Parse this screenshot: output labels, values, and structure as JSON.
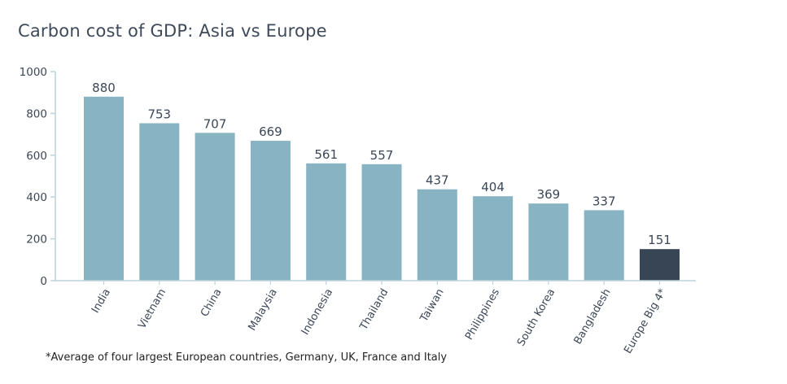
{
  "chart_data": {
    "type": "bar",
    "title": "Carbon cost of GDP: Asia vs Europe",
    "xlabel": "",
    "ylabel": "",
    "ylim": [
      0,
      1000
    ],
    "yticks": [
      0,
      200,
      400,
      600,
      800,
      1000
    ],
    "categories": [
      "India",
      "Vietnam",
      "China",
      "Malaysia",
      "Indonesia",
      "Thailand",
      "Taiwan",
      "Philippines",
      "South Korea",
      "Bangladesh",
      "Europe Big 4*"
    ],
    "values": [
      880,
      753,
      707,
      669,
      561,
      557,
      437,
      404,
      369,
      337,
      151
    ],
    "grid": false,
    "legend": "none",
    "colors": {
      "asia_bar": "#87b3c3",
      "europe_bar": "#384555",
      "axis": "#bcd3dc",
      "text": "#3b4656"
    }
  },
  "footnote": "*Average of four largest European countries, Germany, UK, France and Italy"
}
